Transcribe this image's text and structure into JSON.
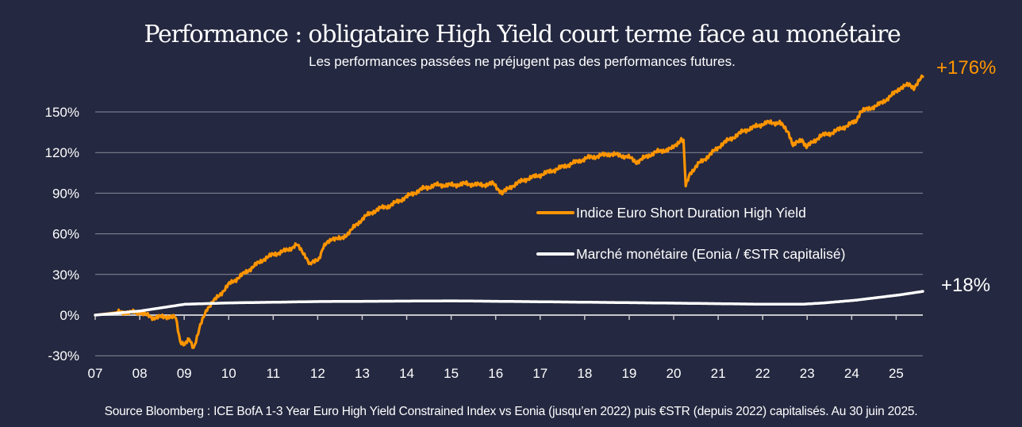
{
  "chart_data": {
    "type": "line",
    "title": "Performance : obligataire High Yield court terme face au monétaire",
    "subtitle": "Les performances passées ne préjugent pas des performances futures.",
    "source": "Source Bloomberg : ICE BofA 1-3 Year Euro High Yield Constrained Index vs Eonia (jusqu’en 2022) puis €STR (depuis 2022) capitalisés. Au 30 juin 2025.",
    "xlim": [
      2007,
      2025.5
    ],
    "ylim": [
      -30,
      175
    ],
    "x_ticks": [
      {
        "v": 2007,
        "label": "07"
      },
      {
        "v": 2008,
        "label": "08"
      },
      {
        "v": 2009,
        "label": "09"
      },
      {
        "v": 2010,
        "label": "10"
      },
      {
        "v": 2011,
        "label": "11"
      },
      {
        "v": 2012,
        "label": "12"
      },
      {
        "v": 2013,
        "label": "13"
      },
      {
        "v": 2014,
        "label": "14"
      },
      {
        "v": 2015,
        "label": "15"
      },
      {
        "v": 2016,
        "label": "16"
      },
      {
        "v": 2017,
        "label": "17"
      },
      {
        "v": 2018,
        "label": "18"
      },
      {
        "v": 2019,
        "label": "19"
      },
      {
        "v": 2020,
        "label": "20"
      },
      {
        "v": 2021,
        "label": "21"
      },
      {
        "v": 2022,
        "label": "22"
      },
      {
        "v": 2023,
        "label": "23"
      },
      {
        "v": 2024,
        "label": "24"
      },
      {
        "v": 2025,
        "label": "25"
      }
    ],
    "y_ticks": [
      {
        "v": -30,
        "label": "-30%"
      },
      {
        "v": 0,
        "label": "0%"
      },
      {
        "v": 30,
        "label": "30%"
      },
      {
        "v": 60,
        "label": "60%"
      },
      {
        "v": 90,
        "label": "90%"
      },
      {
        "v": 120,
        "label": "120%"
      },
      {
        "v": 150,
        "label": "150%"
      }
    ],
    "grid": true,
    "legend_position": "center-right",
    "series": [
      {
        "name": "Indice Euro Short Duration High Yield",
        "color": "#ff9500",
        "end_label": "+176%",
        "points": [
          [
            2007,
            0
          ],
          [
            2007.5,
            2
          ],
          [
            2008,
            2
          ],
          [
            2008.3,
            -2
          ],
          [
            2008.6,
            -1
          ],
          [
            2008.8,
            -2
          ],
          [
            2008.9,
            -19
          ],
          [
            2009,
            -22
          ],
          [
            2009.1,
            -18
          ],
          [
            2009.2,
            -24
          ],
          [
            2009.35,
            -8
          ],
          [
            2009.5,
            5
          ],
          [
            2009.7,
            12
          ],
          [
            2010,
            23
          ],
          [
            2010.3,
            30
          ],
          [
            2010.5,
            35
          ],
          [
            2010.8,
            42
          ],
          [
            2011,
            45
          ],
          [
            2011.3,
            48
          ],
          [
            2011.5,
            52
          ],
          [
            2011.7,
            44
          ],
          [
            2011.8,
            37
          ],
          [
            2012,
            42
          ],
          [
            2012.1,
            50
          ],
          [
            2012.3,
            57
          ],
          [
            2012.5,
            56
          ],
          [
            2012.7,
            62
          ],
          [
            2013,
            72
          ],
          [
            2013.3,
            78
          ],
          [
            2013.6,
            81
          ],
          [
            2014,
            88
          ],
          [
            2014.3,
            93
          ],
          [
            2014.6,
            96
          ],
          [
            2015,
            96
          ],
          [
            2015.3,
            97
          ],
          [
            2015.6,
            96
          ],
          [
            2015.9,
            97
          ],
          [
            2016.1,
            90
          ],
          [
            2016.3,
            95
          ],
          [
            2016.6,
            100
          ],
          [
            2017,
            104
          ],
          [
            2017.5,
            110
          ],
          [
            2018,
            116
          ],
          [
            2018.5,
            119
          ],
          [
            2018.9,
            117
          ],
          [
            2019.1,
            113
          ],
          [
            2019.5,
            120
          ],
          [
            2019.9,
            123
          ],
          [
            2020.1,
            130
          ],
          [
            2020.15,
            128
          ],
          [
            2020.2,
            95
          ],
          [
            2020.3,
            105
          ],
          [
            2020.5,
            112
          ],
          [
            2020.8,
            120
          ],
          [
            2021,
            126
          ],
          [
            2021.5,
            136
          ],
          [
            2022,
            142
          ],
          [
            2022.3,
            142
          ],
          [
            2022.5,
            135
          ],
          [
            2022.6,
            125
          ],
          [
            2022.8,
            130
          ],
          [
            2022.9,
            124
          ],
          [
            2023.2,
            132
          ],
          [
            2023.5,
            135
          ],
          [
            2024,
            143
          ],
          [
            2024.1,
            150
          ],
          [
            2024.5,
            155
          ],
          [
            2024.8,
            162
          ],
          [
            2025,
            168
          ],
          [
            2025.2,
            170
          ],
          [
            2025.3,
            168
          ],
          [
            2025.5,
            176
          ]
        ]
      },
      {
        "name": "Marché monétaire (Eonia / €STR capitalisé)",
        "color": "#ffffff",
        "end_label": "+18%",
        "points": [
          [
            2007,
            0
          ],
          [
            2008,
            3
          ],
          [
            2008.6,
            6
          ],
          [
            2009,
            8
          ],
          [
            2010,
            9
          ],
          [
            2012,
            10
          ],
          [
            2015,
            10.5
          ],
          [
            2018,
            9.5
          ],
          [
            2020,
            8.8
          ],
          [
            2022,
            8
          ],
          [
            2022.8,
            8
          ],
          [
            2023.3,
            9
          ],
          [
            2024,
            11
          ],
          [
            2025,
            15
          ],
          [
            2025.5,
            17.5
          ]
        ]
      }
    ]
  }
}
